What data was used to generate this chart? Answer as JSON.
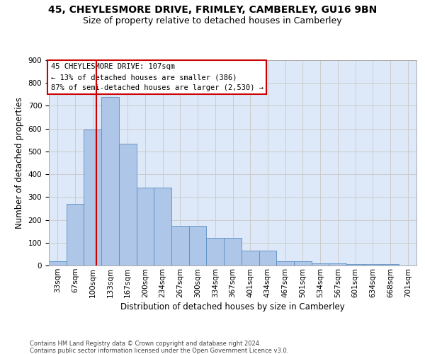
{
  "title1": "45, CHEYLESMORE DRIVE, FRIMLEY, CAMBERLEY, GU16 9BN",
  "title2": "Size of property relative to detached houses in Camberley",
  "xlabel": "Distribution of detached houses by size in Camberley",
  "ylabel": "Number of detached properties",
  "footnote": "Contains HM Land Registry data © Crown copyright and database right 2024.\nContains public sector information licensed under the Open Government Licence v3.0.",
  "bar_labels": [
    "33sqm",
    "67sqm",
    "100sqm",
    "133sqm",
    "167sqm",
    "200sqm",
    "234sqm",
    "267sqm",
    "300sqm",
    "334sqm",
    "367sqm",
    "401sqm",
    "434sqm",
    "467sqm",
    "501sqm",
    "534sqm",
    "567sqm",
    "601sqm",
    "634sqm",
    "668sqm",
    "701sqm"
  ],
  "bar_values": [
    20,
    270,
    595,
    740,
    535,
    340,
    340,
    175,
    175,
    120,
    120,
    65,
    65,
    20,
    20,
    10,
    10,
    5,
    5,
    5,
    0
  ],
  "bar_color": "#aec6e8",
  "bar_edge_color": "#5a8fc3",
  "annotation_text": "45 CHEYLESMORE DRIVE: 107sqm\n← 13% of detached houses are smaller (386)\n87% of semi-detached houses are larger (2,530) →",
  "vline_color": "#cc0000",
  "annotation_box_color": "#cc0000",
  "ylim": [
    0,
    900
  ],
  "yticks": [
    0,
    100,
    200,
    300,
    400,
    500,
    600,
    700,
    800,
    900
  ],
  "grid_color": "#cccccc",
  "bg_color": "#dde9f8",
  "title1_fontsize": 10,
  "title2_fontsize": 9,
  "axis_label_fontsize": 8.5,
  "tick_fontsize": 7.5,
  "annotation_fontsize": 7.5,
  "footnote_fontsize": 6.0
}
